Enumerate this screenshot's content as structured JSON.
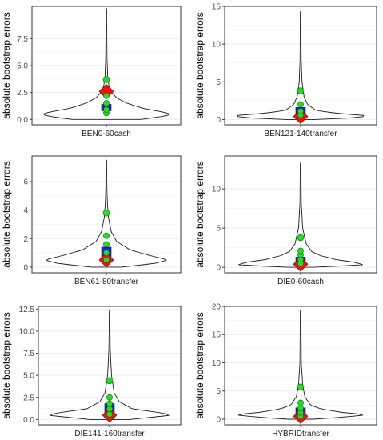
{
  "chart_data": [
    {
      "type": "violin",
      "category": "BEN0-60cash",
      "ylabel": "absolute bootstrap errors",
      "ylim": [
        -0.5,
        10.5
      ],
      "yticks": [
        0.0,
        2.5,
        5.0,
        7.5
      ],
      "yticklabels": [
        "0.0",
        "2.5",
        "5.0",
        "7.5"
      ],
      "ymax": 10.3,
      "violin_profile": [
        [
          0.0,
          0.5
        ],
        [
          0.2,
          0.75
        ],
        [
          0.45,
          0.95
        ],
        [
          0.7,
          0.82
        ],
        [
          1.0,
          0.55
        ],
        [
          1.5,
          0.3
        ],
        [
          2.0,
          0.15
        ],
        [
          2.5,
          0.08
        ],
        [
          3.0,
          0.04
        ],
        [
          4.0,
          0.02
        ],
        [
          5.5,
          0.01
        ],
        [
          8.0,
          0.006
        ],
        [
          10.3,
          0.004
        ]
      ],
      "points_green": [
        0.6,
        0.9,
        1.5,
        2.2,
        3.7
      ],
      "box": [
        0.8,
        1.4
      ],
      "diamond": 2.6
    },
    {
      "type": "violin",
      "category": "BEN121-140transfer",
      "ylabel": "absolute bootstrap errors",
      "ylim": [
        -0.7,
        15.0
      ],
      "yticks": [
        0,
        5,
        10,
        15
      ],
      "yticklabels": [
        "0",
        "5",
        "10",
        "15"
      ],
      "ymax": 14.3,
      "violin_profile": [
        [
          0.0,
          0.2
        ],
        [
          0.25,
          0.85
        ],
        [
          0.5,
          0.95
        ],
        [
          0.8,
          0.55
        ],
        [
          1.2,
          0.22
        ],
        [
          2.0,
          0.1
        ],
        [
          3.0,
          0.05
        ],
        [
          5.0,
          0.02
        ],
        [
          8.0,
          0.008
        ],
        [
          14.3,
          0.004
        ]
      ],
      "points_green": [
        0.6,
        1.1,
        2.0,
        3.8
      ],
      "box": [
        0.4,
        1.6
      ],
      "diamond": 0.4
    },
    {
      "type": "violin",
      "category": "BEN61-80transfer",
      "ylabel": "absolute bootstrap errors",
      "ylim": [
        -0.4,
        7.8
      ],
      "yticks": [
        0,
        2,
        4,
        6
      ],
      "yticklabels": [
        "0",
        "2",
        "4",
        "6"
      ],
      "ymax": 7.5,
      "violin_profile": [
        [
          0.0,
          0.22
        ],
        [
          0.25,
          0.7
        ],
        [
          0.5,
          0.9
        ],
        [
          0.8,
          0.65
        ],
        [
          1.2,
          0.35
        ],
        [
          1.8,
          0.15
        ],
        [
          2.5,
          0.07
        ],
        [
          3.5,
          0.03
        ],
        [
          4.5,
          0.015
        ],
        [
          5.5,
          0.008
        ],
        [
          7.5,
          0.004
        ]
      ],
      "points_green": [
        0.5,
        1.0,
        1.6,
        2.2,
        3.8
      ],
      "box": [
        0.7,
        1.4
      ],
      "diamond": 0.5
    },
    {
      "type": "violin",
      "category": "DIE0-60cash",
      "ylabel": "absolute bootstrap errors",
      "ylim": [
        -0.7,
        14.2
      ],
      "yticks": [
        0,
        5,
        10
      ],
      "yticklabels": [
        "0",
        "5",
        "10"
      ],
      "ymax": 13.3,
      "violin_profile": [
        [
          0.0,
          0.18
        ],
        [
          0.3,
          0.9
        ],
        [
          0.6,
          0.8
        ],
        [
          1.0,
          0.5
        ],
        [
          1.5,
          0.28
        ],
        [
          2.0,
          0.16
        ],
        [
          3.0,
          0.08
        ],
        [
          5.0,
          0.03
        ],
        [
          8.0,
          0.01
        ],
        [
          13.3,
          0.004
        ]
      ],
      "points_green": [
        0.5,
        1.0,
        1.6,
        2.1,
        3.8
      ],
      "box": [
        0.3,
        1.3
      ],
      "diamond": 0.4
    },
    {
      "type": "violin",
      "category": "DIE141-160transfer",
      "ylabel": "absolute bootstrap errors",
      "ylim": [
        -0.6,
        12.8
      ],
      "yticks": [
        0.0,
        2.5,
        5.0,
        7.5,
        10.0,
        12.5
      ],
      "yticklabels": [
        "0.0",
        "2.5",
        "5.0",
        "7.5",
        "10.0",
        "12.5"
      ],
      "ymax": 12.3,
      "violin_profile": [
        [
          0.0,
          0.3
        ],
        [
          0.3,
          0.7
        ],
        [
          0.5,
          0.95
        ],
        [
          0.8,
          0.75
        ],
        [
          1.2,
          0.35
        ],
        [
          2.0,
          0.15
        ],
        [
          3.0,
          0.07
        ],
        [
          5.0,
          0.03
        ],
        [
          8.0,
          0.01
        ],
        [
          12.3,
          0.004
        ]
      ],
      "points_green": [
        0.6,
        1.2,
        1.8,
        2.5,
        4.4
      ],
      "box": [
        0.6,
        1.8
      ],
      "diamond": 0.5
    },
    {
      "type": "violin",
      "category": "HYBRIDtransfer",
      "ylabel": "absolute bootstrap errors",
      "ylim": [
        -1.0,
        20.0
      ],
      "yticks": [
        0,
        5,
        10,
        15,
        20
      ],
      "yticklabels": [
        "0",
        "5",
        "10",
        "15",
        "20"
      ],
      "ymax": 19.3,
      "violin_profile": [
        [
          0.0,
          0.18
        ],
        [
          0.4,
          0.65
        ],
        [
          0.8,
          0.95
        ],
        [
          1.2,
          0.6
        ],
        [
          1.8,
          0.3
        ],
        [
          2.5,
          0.14
        ],
        [
          4.0,
          0.06
        ],
        [
          6.0,
          0.03
        ],
        [
          10.0,
          0.01
        ],
        [
          19.3,
          0.004
        ]
      ],
      "points_green": [
        0.5,
        1.2,
        2.0,
        2.9,
        5.7
      ],
      "box": [
        0.6,
        2.0
      ],
      "diamond": 0.5
    }
  ]
}
